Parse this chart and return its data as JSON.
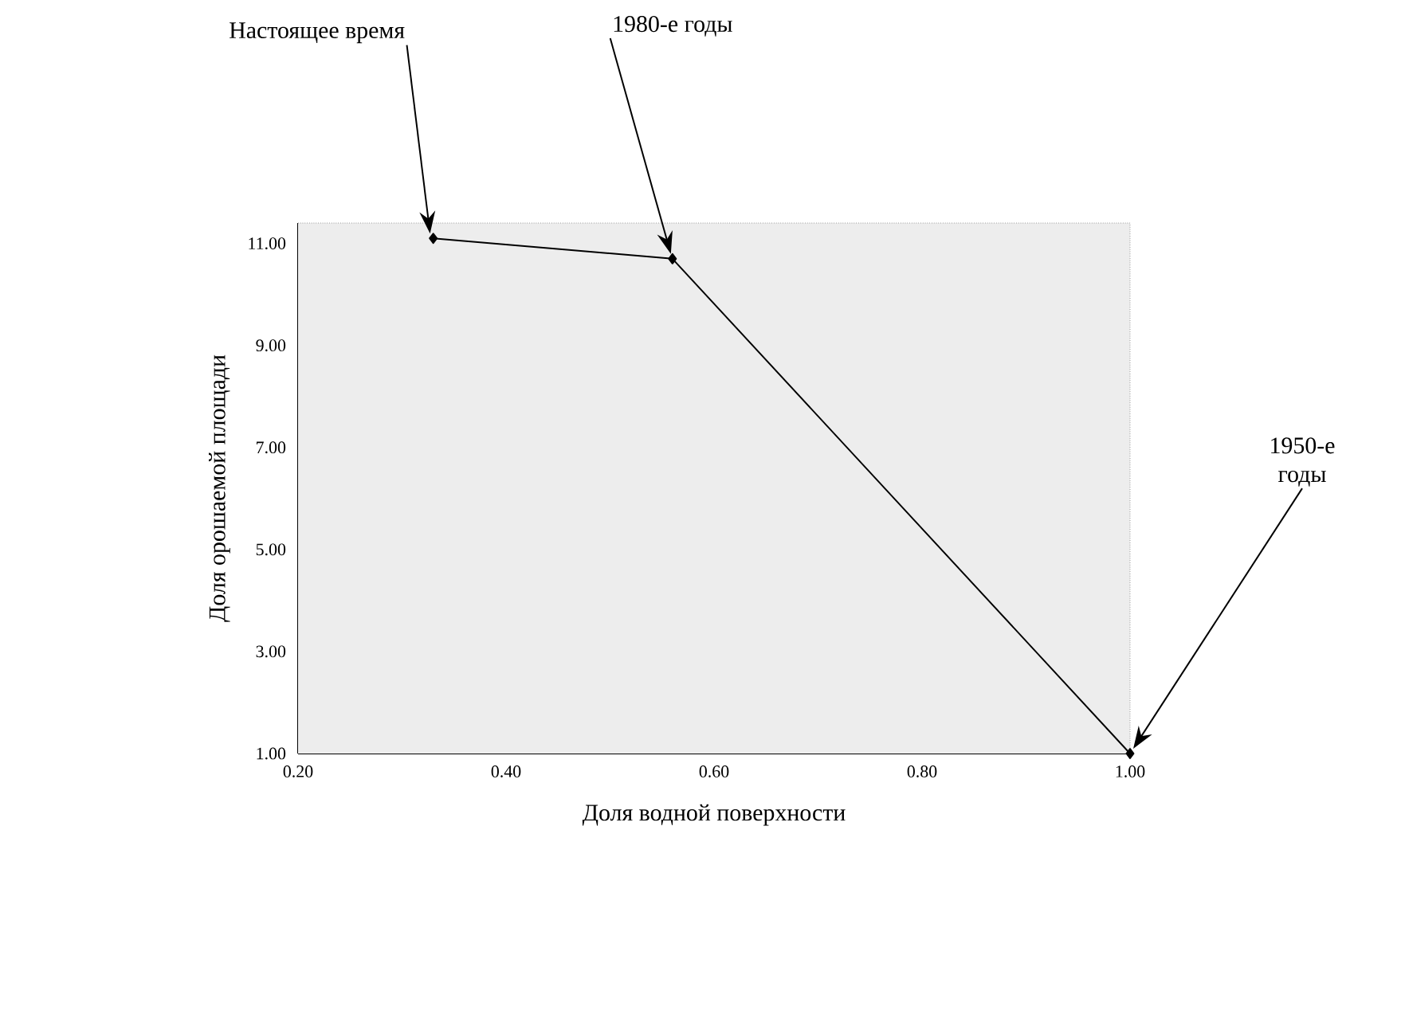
{
  "chart_data": {
    "type": "line",
    "xlabel": "Доля водной поверхности",
    "ylabel": "Доля орошаемой площади",
    "x": [
      0.33,
      0.56,
      1.0
    ],
    "values": [
      11.1,
      10.7,
      1.0
    ],
    "color": "#000000",
    "marker": "diamond",
    "line_style": "solid",
    "grid": false,
    "xlim": [
      0.2,
      1.0
    ],
    "ylim": [
      1.0,
      11.4
    ],
    "xticks": [
      {
        "value": 0.2,
        "label": "0.20"
      },
      {
        "value": 0.4,
        "label": "0.40"
      },
      {
        "value": 0.6,
        "label": "0.60"
      },
      {
        "value": 0.8,
        "label": "0.80"
      },
      {
        "value": 1.0,
        "label": "1.00"
      }
    ],
    "yticks": [
      {
        "value": 1,
        "label": "1.00"
      },
      {
        "value": 3,
        "label": "3.00"
      },
      {
        "value": 5,
        "label": "5.00"
      },
      {
        "value": 7,
        "label": "7.00"
      },
      {
        "value": 9,
        "label": "9.00"
      },
      {
        "value": 11,
        "label": "11.00"
      }
    ],
    "annotations": [
      "Настоящее время",
      "1980-е годы",
      "1950-е годы"
    ]
  }
}
